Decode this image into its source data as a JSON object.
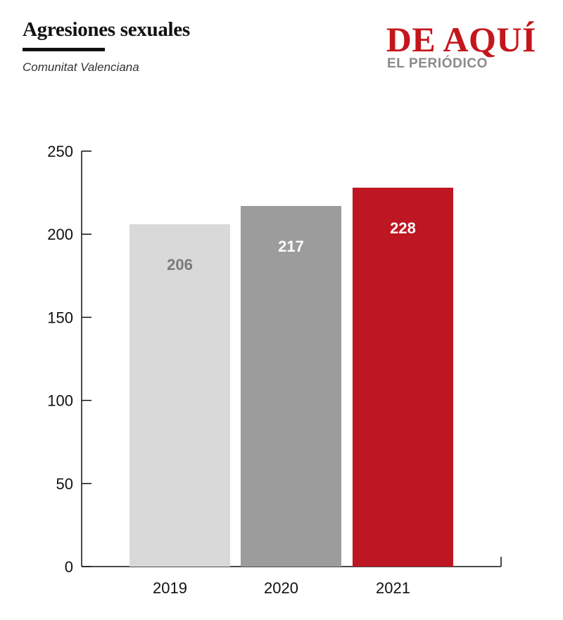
{
  "header": {
    "title": "Agresiones sexuales",
    "subtitle": "Comunitat Valenciana"
  },
  "logo": {
    "main": "DE AQUÍ",
    "sub": "EL PERIÓDICO"
  },
  "colors": {
    "bar_2019": "#d9d9d9",
    "bar_2020": "#9c9c9c",
    "bar_2021": "#be1622",
    "label_2019": "#7a7a7a",
    "label_2020": "#ffffff",
    "label_2021": "#ffffff",
    "brand_red": "#c4161c"
  },
  "chart_data": {
    "type": "bar",
    "categories": [
      "2019",
      "2020",
      "2021"
    ],
    "values": [
      206,
      217,
      228
    ],
    "data_labels": [
      "206",
      "217",
      "228"
    ],
    "ylim": [
      0,
      250
    ],
    "yticks": [
      0,
      50,
      100,
      150,
      200,
      250
    ],
    "grid": false
  }
}
